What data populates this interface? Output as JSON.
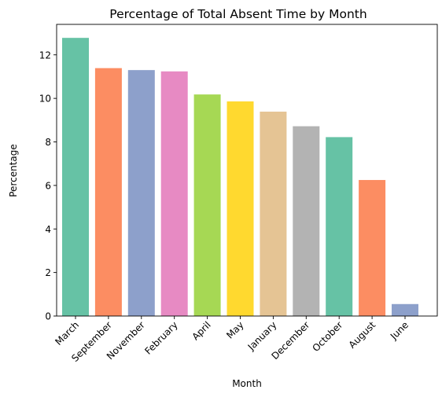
{
  "chart_data": {
    "type": "bar",
    "title": "Percentage of Total Absent Time by Month",
    "xlabel": "Month",
    "ylabel": "Percentage",
    "categories": [
      "March",
      "September",
      "November",
      "February",
      "April",
      "May",
      "January",
      "December",
      "October",
      "August",
      "June"
    ],
    "values": [
      12.78,
      11.39,
      11.3,
      11.24,
      10.18,
      9.86,
      9.39,
      8.72,
      8.22,
      6.25,
      0.55
    ],
    "colors": [
      "#66c2a5",
      "#fc8d62",
      "#8da0cb",
      "#e78ac3",
      "#a6d854",
      "#ffd92f",
      "#e5c494",
      "#b3b3b3",
      "#66c2a5",
      "#fc8d62",
      "#8da0cb"
    ],
    "ylim": [
      0,
      13.4
    ],
    "yticks": [
      0,
      2,
      4,
      6,
      8,
      10,
      12
    ],
    "grid": false,
    "legend": "none"
  }
}
